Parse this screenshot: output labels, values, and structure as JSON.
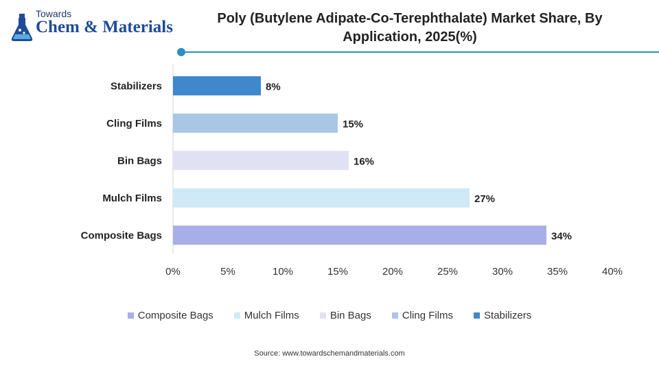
{
  "logo": {
    "line1": "Towards",
    "line2": "Chem & Materials"
  },
  "source": "Source: www.towardschemandmaterials.com",
  "colors": {
    "accent": "#2a8fc7",
    "Composite Bags": "#a8aee8",
    "Mulch Films": "#cfe9f8",
    "Bin Bags": "#e0e2f4",
    "Cling Films": "#a9c6e4",
    "Stabilizers": "#3f88cc"
  },
  "chart_data": {
    "type": "bar",
    "orientation": "horizontal",
    "title": "Poly (Butylene Adipate-Co-Terephthalate) Market Share, By Application, 2025(%)",
    "xlabel": "",
    "ylabel": "",
    "categories": [
      "Composite Bags",
      "Mulch Films",
      "Bin Bags",
      "Cling Films",
      "Stabilizers"
    ],
    "values": [
      34,
      27,
      16,
      15,
      8
    ],
    "value_labels": [
      "34%",
      "27%",
      "16%",
      "15%",
      "8%"
    ],
    "xlim": [
      0,
      40
    ],
    "ticks": [
      0,
      5,
      10,
      15,
      20,
      25,
      30,
      35,
      40
    ],
    "tick_labels": [
      "0%",
      "5%",
      "10%",
      "15%",
      "20%",
      "25%",
      "30%",
      "35%",
      "40%"
    ],
    "legend": [
      "Composite Bags",
      "Mulch Films",
      "Bin Bags",
      "Cling Films",
      "Stabilizers"
    ],
    "legend_position": "bottom",
    "grid": false
  }
}
